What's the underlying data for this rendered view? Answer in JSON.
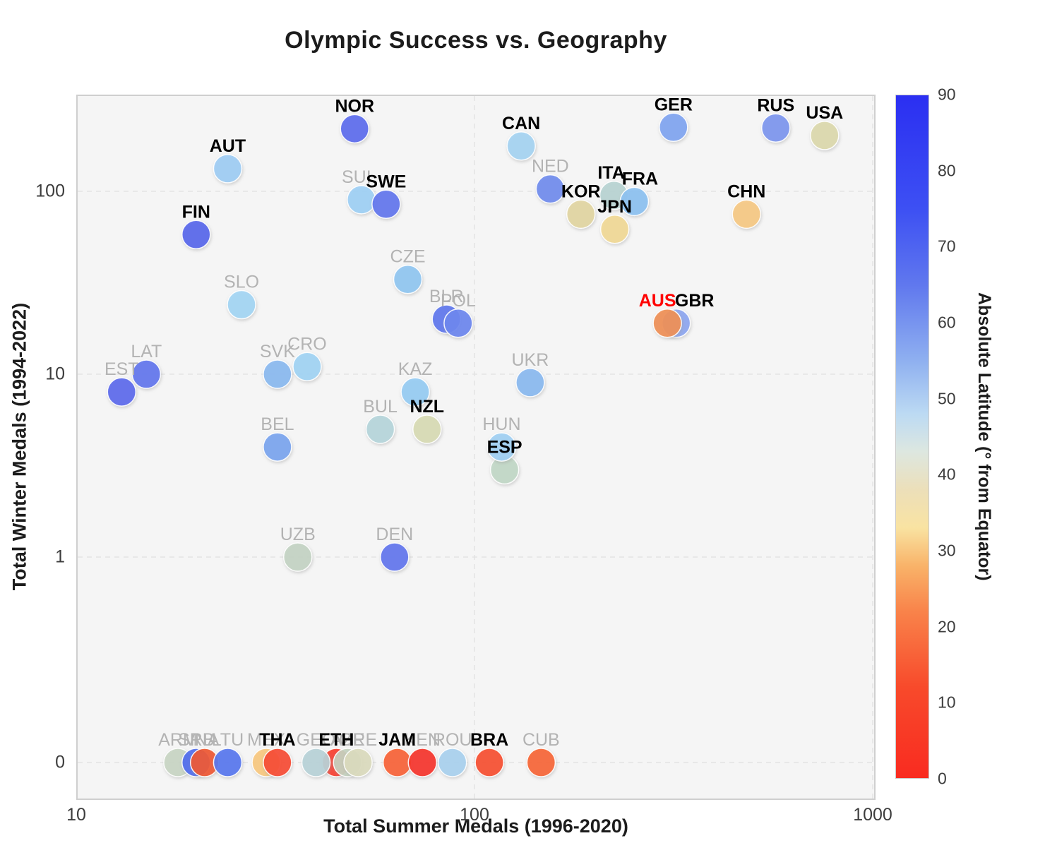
{
  "title": "Olympic Success vs. Geography",
  "chart_data": {
    "type": "scatter",
    "title": "Olympic Success vs. Geography",
    "xlabel": "Total Summer Medals (1996-2020)",
    "ylabel": "Total Winter Medals (1994-2022)",
    "x_scale": "log",
    "x_ticks": [
      10,
      100,
      1000
    ],
    "xlim": [
      10,
      1000
    ],
    "y_scale": "symlog",
    "y_ticks": [
      0,
      1,
      10,
      100
    ],
    "ylim": [
      0,
      340
    ],
    "grid": "dashed",
    "plot_bg": "#f5f5f5",
    "label_colors": {
      "highlight": "#000000",
      "special": "#ff0000",
      "muted": "#b3b3b3"
    },
    "colorbar": {
      "label": "Absolute Latitude (° from Equator)",
      "min": 0,
      "max": 90,
      "ticks": [
        0,
        10,
        20,
        30,
        40,
        50,
        60,
        70,
        80,
        90
      ],
      "gradient": [
        {
          "v": 90,
          "color": "#2b2ff2"
        },
        {
          "v": 75,
          "color": "#3d50f3"
        },
        {
          "v": 65,
          "color": "#6078ee"
        },
        {
          "v": 55,
          "color": "#8fb0f0"
        },
        {
          "v": 48,
          "color": "#bcdaf3"
        },
        {
          "v": 43,
          "color": "#dde7e0"
        },
        {
          "v": 38,
          "color": "#ecdfb9"
        },
        {
          "v": 33,
          "color": "#f9e3a2"
        },
        {
          "v": 28,
          "color": "#f9b369"
        },
        {
          "v": 22,
          "color": "#f9834a"
        },
        {
          "v": 12,
          "color": "#f84a2b"
        },
        {
          "v": 0,
          "color": "#f92b20"
        }
      ]
    },
    "points": [
      {
        "code": "LAT",
        "summer": 15,
        "winter": 10,
        "lat": 57,
        "color": "#5f74ee",
        "style": "muted"
      },
      {
        "code": "EST",
        "summer": 13,
        "winter": 8,
        "lat": 59,
        "color": "#5a68ed",
        "style": "muted"
      },
      {
        "code": "SUI",
        "summer": 52,
        "winter": 90,
        "lat": 47,
        "color": "#9fd0f6",
        "style": "muted",
        "dx": -7
      },
      {
        "code": "SWE",
        "summer": 60,
        "winter": 85,
        "lat": 62,
        "color": "#5f74ee",
        "style": "highlight"
      },
      {
        "code": "NOR",
        "summer": 50,
        "winter": 220,
        "lat": 64,
        "color": "#5a6aee",
        "style": "highlight"
      },
      {
        "code": "AUT",
        "summer": 24,
        "winter": 133,
        "lat": 47,
        "color": "#9ecdf5",
        "style": "highlight"
      },
      {
        "code": "FIN",
        "summer": 20,
        "winter": 58,
        "lat": 64,
        "color": "#5565ec",
        "style": "highlight"
      },
      {
        "code": "CAN",
        "summer": 131,
        "winter": 177,
        "lat": 56,
        "color": "#a5d4f3",
        "style": "highlight"
      },
      {
        "code": "NED",
        "summer": 155,
        "winter": 103,
        "lat": 52,
        "color": "#6f8cee",
        "style": "muted"
      },
      {
        "code": "ITA",
        "summer": 224,
        "winter": 95,
        "lat": 43,
        "color": "#b8d4d3",
        "style": "highlight",
        "dx": -4
      },
      {
        "code": "FRA",
        "summer": 252,
        "winter": 88,
        "lat": 46,
        "color": "#8cc2f2",
        "style": "highlight",
        "dx": 8
      },
      {
        "code": "KOR",
        "summer": 185,
        "winter": 75,
        "lat": 37,
        "color": "#e2d6a2",
        "style": "highlight"
      },
      {
        "code": "JPN",
        "summer": 225,
        "winter": 62,
        "lat": 36,
        "color": "#f2d995",
        "style": "highlight"
      },
      {
        "code": "GER",
        "summer": 316,
        "winter": 224,
        "lat": 51,
        "color": "#80a4f2",
        "style": "highlight"
      },
      {
        "code": "RUS",
        "summer": 571,
        "winter": 222,
        "lat": 61,
        "color": "#7b96ef",
        "style": "highlight"
      },
      {
        "code": "USA",
        "summer": 757,
        "winter": 202,
        "lat": 38,
        "color": "#ddd9ad",
        "style": "highlight"
      },
      {
        "code": "CHN",
        "summer": 482,
        "winter": 75,
        "lat": 35,
        "color": "#f7c983",
        "style": "highlight"
      },
      {
        "code": "CZE",
        "summer": 68,
        "winter": 33,
        "lat": 50,
        "color": "#90c6f2",
        "style": "muted"
      },
      {
        "code": "SLO",
        "summer": 26,
        "winter": 24,
        "lat": 46,
        "color": "#a3d6f5",
        "style": "muted"
      },
      {
        "code": "BLR",
        "summer": 85,
        "winter": 20,
        "lat": 53,
        "color": "#5c76ee",
        "style": "muted"
      },
      {
        "code": "POL",
        "summer": 91,
        "winter": 19,
        "lat": 52,
        "color": "#6b86ef",
        "style": "muted"
      },
      {
        "code": "GBR",
        "summer": 321,
        "winter": 19,
        "lat": 54,
        "color": "#8da6f2",
        "style": "highlight",
        "dx": 26
      },
      {
        "code": "AUS",
        "summer": 305,
        "winter": 19,
        "lat": 25,
        "color": "#ef8f52",
        "style": "special",
        "dx": -14
      },
      {
        "code": "SVK",
        "summer": 32,
        "winter": 10,
        "lat": 48,
        "color": "#8ab9f1",
        "style": "muted"
      },
      {
        "code": "CRO",
        "summer": 38,
        "winter": 11,
        "lat": 45,
        "color": "#a0d4f5",
        "style": "muted"
      },
      {
        "code": "KAZ",
        "summer": 71,
        "winter": 8,
        "lat": 48,
        "color": "#96ccf4",
        "style": "muted"
      },
      {
        "code": "UKR",
        "summer": 138,
        "winter": 9,
        "lat": 49,
        "color": "#8ab9f1",
        "style": "muted"
      },
      {
        "code": "BUL",
        "summer": 58,
        "winter": 5,
        "lat": 43,
        "color": "#b6d6dc",
        "style": "muted"
      },
      {
        "code": "NZL",
        "summer": 76,
        "winter": 5,
        "lat": 41,
        "color": "#d8dcb4",
        "style": "highlight"
      },
      {
        "code": "BEL",
        "summer": 32,
        "winter": 4,
        "lat": 50,
        "color": "#79a4ef",
        "style": "muted"
      },
      {
        "code": "ESP",
        "summer": 119,
        "winter": 3,
        "lat": 40,
        "color": "#c2d8c8",
        "style": "highlight"
      },
      {
        "code": "HUN",
        "summer": 117,
        "winter": 4,
        "lat": 47,
        "color": "#a0d0f4",
        "style": "muted"
      },
      {
        "code": "UZB",
        "summer": 36,
        "winter": 1,
        "lat": 41,
        "color": "#c4d4c4",
        "style": "muted"
      },
      {
        "code": "DEN",
        "summer": 63,
        "winter": 1,
        "lat": 56,
        "color": "#5f74ee",
        "style": "muted"
      },
      {
        "code": "ARM",
        "summer": 18,
        "winter": 0,
        "lat": 40,
        "color": "#c9d6c4",
        "style": "muted"
      },
      {
        "code": "SRB",
        "summer": 20,
        "winter": 0,
        "lat": 44,
        "color": "#4d6cee",
        "style": "muted"
      },
      {
        "code": "INA",
        "summer": 21,
        "winter": 0,
        "lat": 6,
        "color": "#f0552a",
        "style": "muted"
      },
      {
        "code": "LTU",
        "summer": 24,
        "winter": 0,
        "lat": 55,
        "color": "#5577f0",
        "style": "muted"
      },
      {
        "code": "MEX",
        "summer": 30,
        "winter": 0,
        "lat": 23,
        "color": "#f9c97e",
        "style": "muted"
      },
      {
        "code": "THA",
        "summer": 32,
        "winter": 0,
        "lat": 15,
        "color": "#f8472b",
        "style": "highlight"
      },
      {
        "code": "ETH",
        "summer": 45,
        "winter": 0,
        "lat": 9,
        "color": "#f93b26",
        "style": "highlight"
      },
      {
        "code": "GEO",
        "summer": 40,
        "winter": 0,
        "lat": 42,
        "color": "#b8d3d8",
        "style": "muted"
      },
      {
        "code": "AZE",
        "summer": 48,
        "winter": 0,
        "lat": 40,
        "color": "#c5d3c0",
        "style": "muted"
      },
      {
        "code": "GRE",
        "summer": 51,
        "winter": 0,
        "lat": 39,
        "color": "#dcdcbe",
        "style": "muted"
      },
      {
        "code": "JAM",
        "summer": 64,
        "winter": 0,
        "lat": 18,
        "color": "#f9602f",
        "style": "highlight"
      },
      {
        "code": "KEN",
        "summer": 74,
        "winter": 0,
        "lat": 1,
        "color": "#f72d20",
        "style": "muted"
      },
      {
        "code": "ROU",
        "summer": 88,
        "winter": 0,
        "lat": 46,
        "color": "#a8d2f0",
        "style": "muted"
      },
      {
        "code": "BRA",
        "summer": 109,
        "winter": 0,
        "lat": 14,
        "color": "#f84b28",
        "style": "highlight"
      },
      {
        "code": "CUB",
        "summer": 147,
        "winter": 0,
        "lat": 21,
        "color": "#f8642f",
        "style": "muted"
      }
    ]
  }
}
